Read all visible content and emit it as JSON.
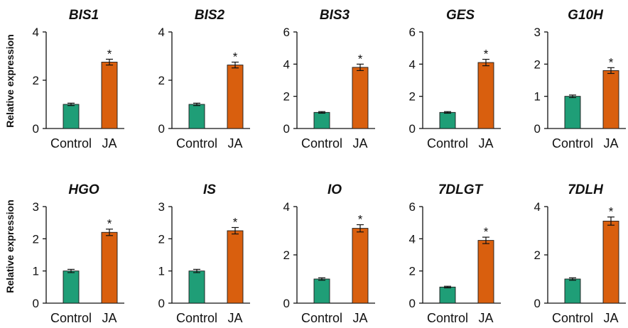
{
  "y_axis_label": "Relative expression",
  "colors": {
    "control": "#1f9e77",
    "ja": "#d95f0e",
    "axis": "#111111"
  },
  "chart_data": [
    {
      "type": "bar",
      "title": "BIS1",
      "categories": [
        "Control",
        "JA"
      ],
      "values": [
        1.0,
        2.75
      ],
      "errors": [
        0.05,
        0.12
      ],
      "ylim": [
        0,
        4
      ],
      "yticks": [
        0,
        2,
        4
      ],
      "significance": [
        "",
        "*"
      ]
    },
    {
      "type": "bar",
      "title": "BIS2",
      "categories": [
        "Control",
        "JA"
      ],
      "values": [
        1.0,
        2.63
      ],
      "errors": [
        0.05,
        0.12
      ],
      "ylim": [
        0,
        4
      ],
      "yticks": [
        0,
        2,
        4
      ],
      "significance": [
        "",
        "*"
      ]
    },
    {
      "type": "bar",
      "title": "BIS3",
      "categories": [
        "Control",
        "JA"
      ],
      "values": [
        1.0,
        3.8
      ],
      "errors": [
        0.05,
        0.2
      ],
      "ylim": [
        0,
        6
      ],
      "yticks": [
        0,
        2,
        4,
        6
      ],
      "significance": [
        "",
        "*"
      ]
    },
    {
      "type": "bar",
      "title": "GES",
      "categories": [
        "Control",
        "JA"
      ],
      "values": [
        1.0,
        4.1
      ],
      "errors": [
        0.05,
        0.2
      ],
      "ylim": [
        0,
        6
      ],
      "yticks": [
        0,
        2,
        4,
        6
      ],
      "significance": [
        "",
        "*"
      ]
    },
    {
      "type": "bar",
      "title": "G10H",
      "categories": [
        "Control",
        "JA"
      ],
      "values": [
        1.0,
        1.8
      ],
      "errors": [
        0.04,
        0.09
      ],
      "ylim": [
        0,
        3
      ],
      "yticks": [
        0,
        1,
        2,
        3
      ],
      "significance": [
        "",
        "*"
      ]
    },
    {
      "type": "bar",
      "title": "HGO",
      "categories": [
        "Control",
        "JA"
      ],
      "values": [
        1.0,
        2.2
      ],
      "errors": [
        0.05,
        0.1
      ],
      "ylim": [
        0,
        3
      ],
      "yticks": [
        0,
        1,
        2,
        3
      ],
      "significance": [
        "",
        "*"
      ]
    },
    {
      "type": "bar",
      "title": "IS",
      "categories": [
        "Control",
        "JA"
      ],
      "values": [
        1.0,
        2.25
      ],
      "errors": [
        0.05,
        0.1
      ],
      "ylim": [
        0,
        3
      ],
      "yticks": [
        0,
        1,
        2,
        3
      ],
      "significance": [
        "",
        "*"
      ]
    },
    {
      "type": "bar",
      "title": "IO",
      "categories": [
        "Control",
        "JA"
      ],
      "values": [
        1.0,
        3.1
      ],
      "errors": [
        0.05,
        0.15
      ],
      "ylim": [
        0,
        4
      ],
      "yticks": [
        0,
        2,
        4
      ],
      "significance": [
        "",
        "*"
      ]
    },
    {
      "type": "bar",
      "title": "7DLGT",
      "categories": [
        "Control",
        "JA"
      ],
      "values": [
        1.0,
        3.9
      ],
      "errors": [
        0.05,
        0.2
      ],
      "ylim": [
        0,
        6
      ],
      "yticks": [
        0,
        2,
        4,
        6
      ],
      "significance": [
        "",
        "*"
      ]
    },
    {
      "type": "bar",
      "title": "7DLH",
      "categories": [
        "Control",
        "JA"
      ],
      "values": [
        1.0,
        3.4
      ],
      "errors": [
        0.05,
        0.17
      ],
      "ylim": [
        0,
        4
      ],
      "yticks": [
        0,
        2,
        4
      ],
      "significance": [
        "",
        "*"
      ]
    }
  ]
}
